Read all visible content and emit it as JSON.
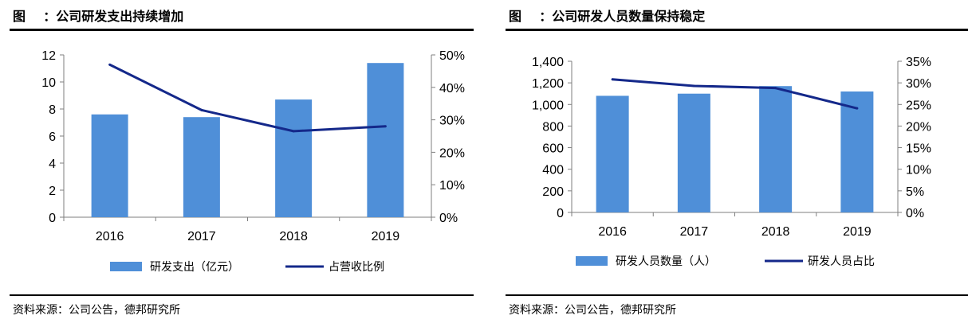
{
  "left": {
    "title": "图    ：公司研发支出持续增加",
    "source": "资料来源：公司公告，德邦研究所",
    "chart_data": {
      "type": "bar",
      "categories": [
        "2016",
        "2017",
        "2018",
        "2019"
      ],
      "series": [
        {
          "name": "研发支出（亿元）",
          "type": "bar",
          "axis": "left",
          "color": "#4f8fd8",
          "values": [
            7.6,
            7.4,
            8.7,
            11.4
          ]
        },
        {
          "name": "占营收比例",
          "type": "line",
          "axis": "right",
          "color": "#14288a",
          "values": [
            0.47,
            0.33,
            0.265,
            0.28
          ]
        }
      ],
      "y_left": {
        "ylim": [
          0,
          12
        ],
        "ticks": [
          0,
          2,
          4,
          6,
          8,
          10,
          12
        ],
        "tick_labels": [
          "0",
          "2",
          "4",
          "6",
          "8",
          "10",
          "12"
        ]
      },
      "y_right": {
        "ylim": [
          0,
          0.5
        ],
        "ticks": [
          0,
          0.1,
          0.2,
          0.3,
          0.4,
          0.5
        ],
        "tick_labels": [
          "0%",
          "10%",
          "20%",
          "30%",
          "40%",
          "50%"
        ]
      },
      "grid": false,
      "legend": "bottom"
    }
  },
  "right": {
    "title": "图    ：公司研发人员数量保持稳定",
    "source": "资料来源：公司公告，德邦研究所",
    "chart_data": {
      "type": "bar",
      "categories": [
        "2016",
        "2017",
        "2018",
        "2019"
      ],
      "series": [
        {
          "name": "研发人员数量（人）",
          "type": "bar",
          "axis": "left",
          "color": "#4f8fd8",
          "values": [
            1080,
            1100,
            1170,
            1120
          ]
        },
        {
          "name": "研发人员占比",
          "type": "line",
          "axis": "right",
          "color": "#14288a",
          "values": [
            0.308,
            0.293,
            0.288,
            0.241
          ]
        }
      ],
      "y_left": {
        "ylim": [
          0,
          1400
        ],
        "ticks": [
          0,
          200,
          400,
          600,
          800,
          1000,
          1200,
          1400
        ],
        "tick_labels": [
          "0",
          "200",
          "400",
          "600",
          "800",
          "1,000",
          "1,200",
          "1,400"
        ]
      },
      "y_right": {
        "ylim": [
          0,
          0.35
        ],
        "ticks": [
          0,
          0.05,
          0.1,
          0.15,
          0.2,
          0.25,
          0.3,
          0.35
        ],
        "tick_labels": [
          "0%",
          "5%",
          "10%",
          "15%",
          "20%",
          "25%",
          "30%",
          "35%"
        ]
      },
      "grid": false,
      "legend": "bottom"
    }
  }
}
